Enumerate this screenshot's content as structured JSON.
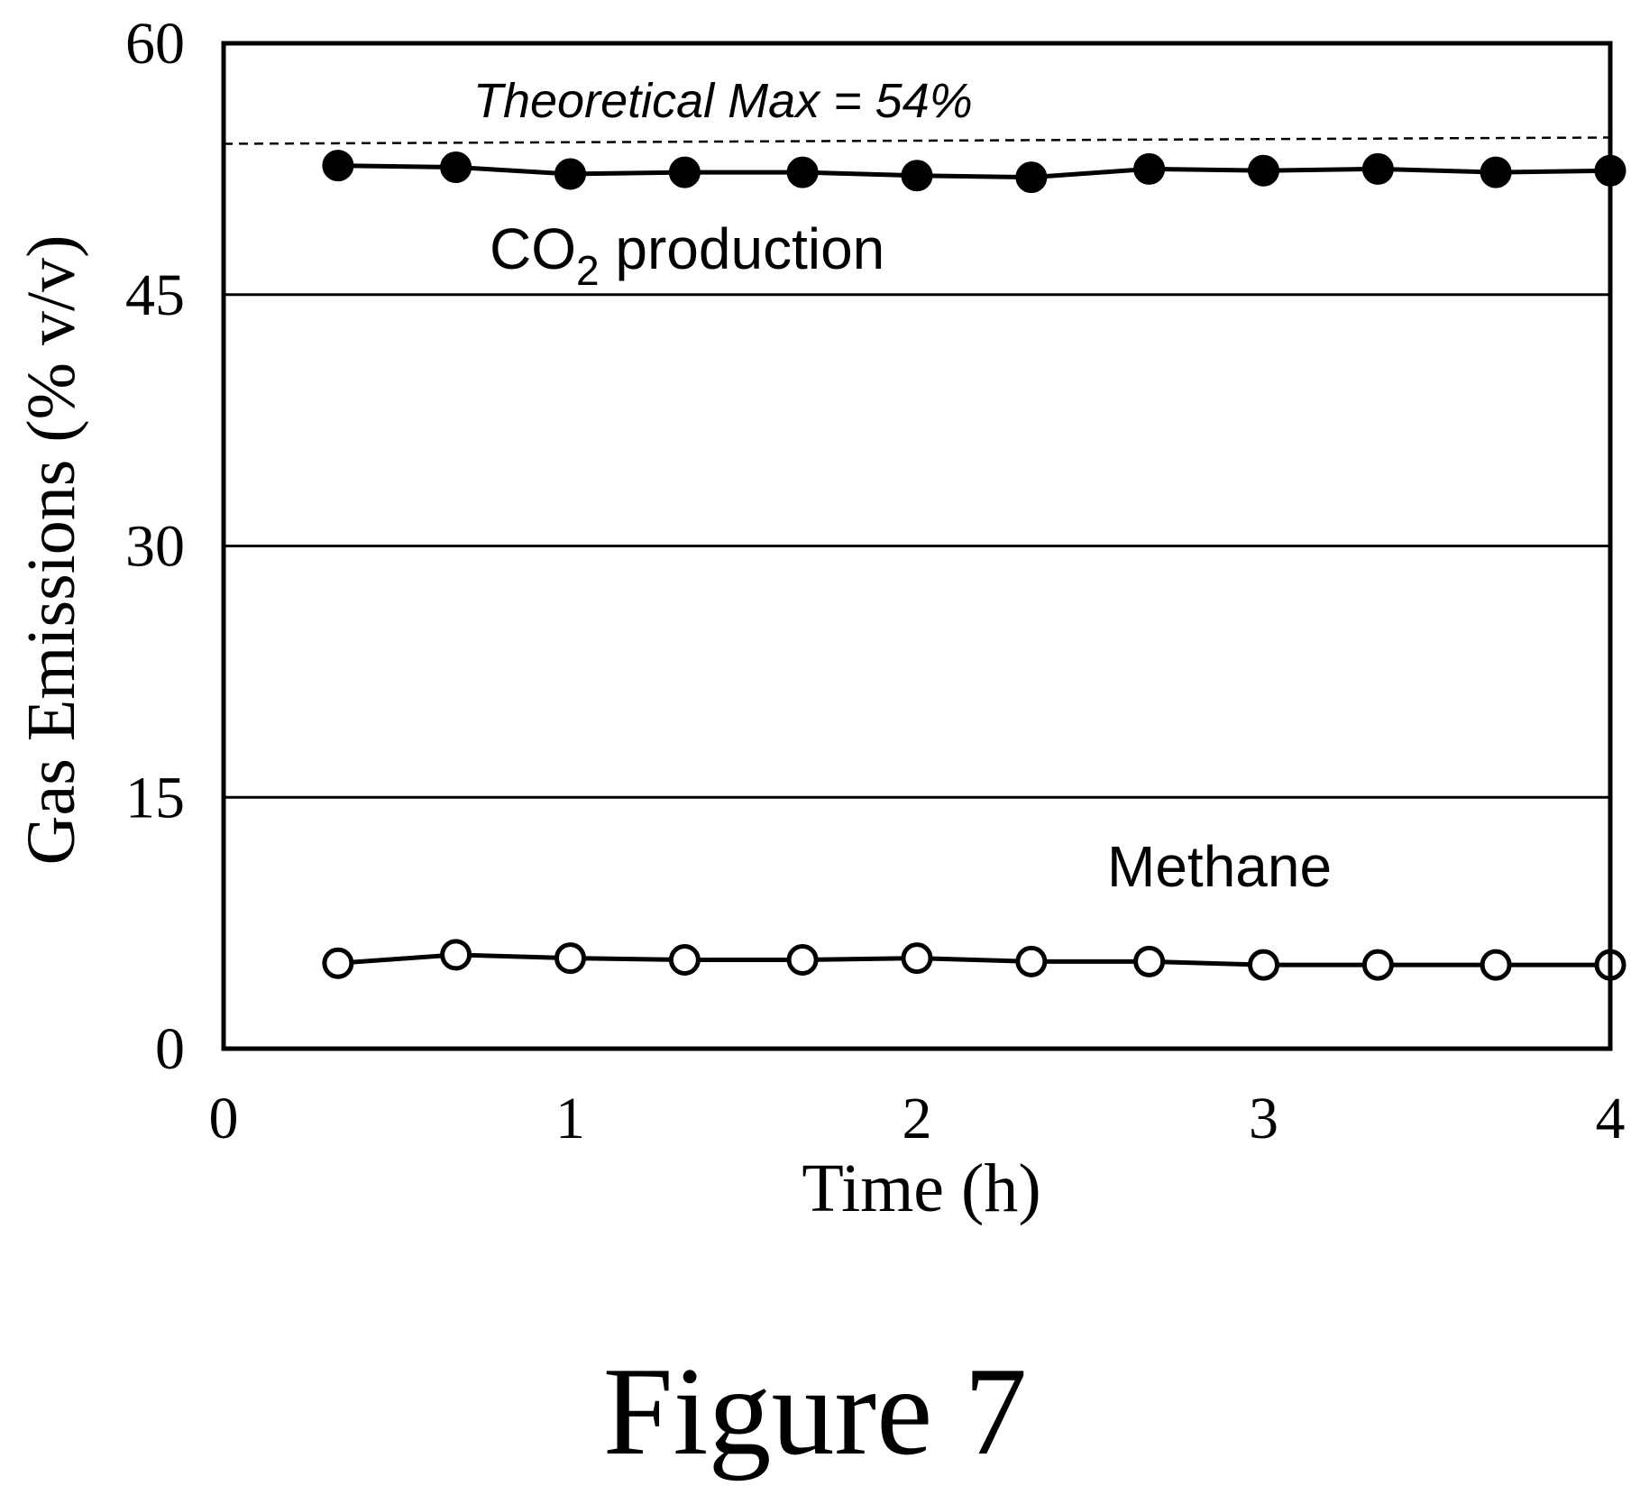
{
  "figure_caption": "Figure 7",
  "chart_data": {
    "type": "line",
    "xlabel": "Time (h)",
    "ylabel": "Gas Emissions (% v/v)",
    "xlim": [
      0,
      4
    ],
    "ylim": [
      0,
      60
    ],
    "x_ticks": [
      "0",
      "1",
      "2",
      "3",
      "4"
    ],
    "y_ticks": [
      "0",
      "15",
      "30",
      "45",
      "60"
    ],
    "grid": "horizontal",
    "series": [
      {
        "label_prefix": "CO",
        "label_sub": "2",
        "label_suffix": " production",
        "marker": "filled-circle",
        "color": "#000000",
        "x": [
          0.33,
          0.67,
          1.0,
          1.33,
          1.67,
          2.0,
          2.33,
          2.67,
          3.0,
          3.33,
          3.67,
          4.0
        ],
        "y": [
          52.7,
          52.6,
          52.2,
          52.3,
          52.3,
          52.1,
          52.0,
          52.5,
          52.4,
          52.5,
          52.3,
          52.4
        ]
      },
      {
        "name": "Methane",
        "marker": "open-circle",
        "color": "#000000",
        "x": [
          0.33,
          0.67,
          1.0,
          1.33,
          1.67,
          2.0,
          2.33,
          2.67,
          3.0,
          3.33,
          3.67,
          4.0
        ],
        "y": [
          5.1,
          5.6,
          5.4,
          5.3,
          5.3,
          5.4,
          5.2,
          5.2,
          5.0,
          5.0,
          5.0,
          5.0
        ]
      }
    ],
    "reference_line": {
      "label": "Theoretical Max = 54%",
      "y": 54,
      "style": "dashed"
    }
  }
}
